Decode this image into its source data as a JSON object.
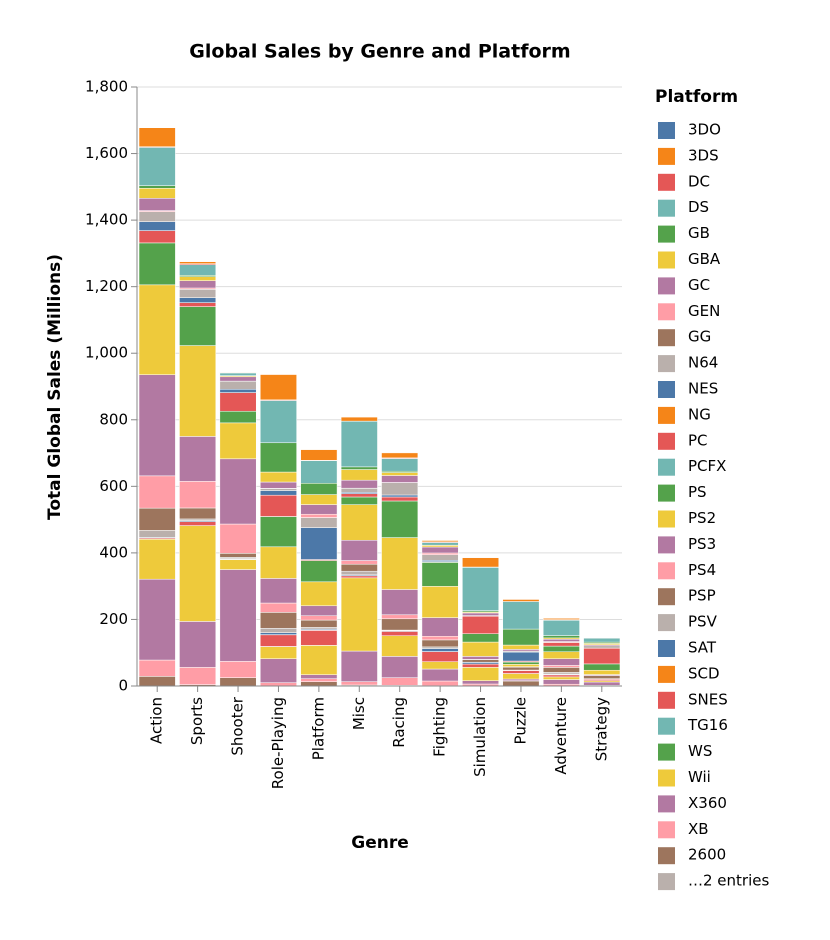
{
  "chart_data": {
    "type": "stacked_bar",
    "title": "Global Sales by Genre and Platform",
    "x_label": "Genre",
    "y_label": "Total Global Sales (Millions)",
    "legend_title": "Platform",
    "legend_more": "…2 entries",
    "categories": [
      "Action",
      "Sports",
      "Shooter",
      "Role-Playing",
      "Platform",
      "Misc",
      "Racing",
      "Fighting",
      "Simulation",
      "Puzzle",
      "Adventure",
      "Strategy"
    ],
    "ylim": [
      0,
      1800
    ],
    "yticks": [
      0,
      200,
      400,
      600,
      800,
      {
        "value": 1000,
        "label": "1,000"
      },
      {
        "value": 1200,
        "label": "1,200"
      },
      {
        "value": 1400,
        "label": "1,400"
      },
      {
        "value": 1600,
        "label": "1,600"
      },
      {
        "value": 1800,
        "label": "1,800"
      }
    ],
    "grid": true,
    "series": [
      {
        "name": "3DO",
        "color": "#4c78a8",
        "values": [
          0.1,
          0,
          0,
          0,
          0,
          0,
          0,
          0,
          0,
          0,
          0.1,
          0
        ]
      },
      {
        "name": "3DS",
        "color": "#f58518",
        "values": [
          57,
          6,
          1,
          76,
          32,
          12,
          15,
          4,
          28,
          6,
          4,
          1
        ]
      },
      {
        "name": "DC",
        "color": "#e45756",
        "values": [
          2,
          3,
          1,
          2,
          1,
          0.5,
          2,
          2,
          1,
          0,
          2,
          0.5
        ]
      },
      {
        "name": "DS",
        "color": "#72b7b2",
        "values": [
          115,
          32,
          8,
          127,
          68,
          137,
          38,
          8,
          130,
          83,
          46,
          12
        ]
      },
      {
        "name": "GB",
        "color": "#54a24b",
        "values": [
          8,
          4,
          0.5,
          88,
          34,
          8,
          4,
          0.5,
          4,
          48,
          7,
          4
        ]
      },
      {
        "name": "GBA",
        "color": "#eeca3b",
        "values": [
          30,
          12,
          3,
          30,
          30,
          32,
          9,
          5,
          3,
          13,
          4,
          4
        ]
      },
      {
        "name": "GC",
        "color": "#b279a2",
        "values": [
          37,
          22,
          13,
          19,
          29,
          24,
          21,
          18,
          8,
          5,
          7,
          3
        ]
      },
      {
        "name": "GEN",
        "color": "#ff9da6",
        "values": [
          3,
          4,
          0.5,
          0.5,
          10,
          0.5,
          0.5,
          5,
          0,
          0,
          0.5,
          0
        ]
      },
      {
        "name": "GG",
        "color": "#9d755d",
        "values": [
          0.1,
          0,
          0,
          0,
          0.1,
          0,
          0,
          0,
          0,
          0,
          0.1,
          0
        ]
      },
      {
        "name": "N64",
        "color": "#bab0ac",
        "values": [
          30,
          25,
          24,
          6,
          30,
          12,
          37,
          17,
          1,
          3,
          1,
          7
        ]
      },
      {
        "name": "NES",
        "color": "#4c78a8",
        "values": [
          27,
          15,
          10,
          14,
          96,
          4,
          6,
          4,
          0.5,
          27,
          1,
          0.5
        ]
      },
      {
        "name": "NG",
        "color": "#f58518",
        "values": [
          0,
          0,
          0,
          0,
          0,
          0,
          0,
          1.2,
          0,
          0,
          0,
          0
        ]
      },
      {
        "name": "PC",
        "color": "#e45756",
        "values": [
          37,
          12,
          56,
          64,
          3,
          10,
          12,
          1,
          53,
          3,
          11,
          47
        ]
      },
      {
        "name": "PCFX",
        "color": "#72b7b2",
        "values": [
          0,
          0,
          0,
          0.1,
          0,
          0,
          0,
          0,
          0,
          0,
          0,
          0
        ]
      },
      {
        "name": "PS",
        "color": "#54a24b",
        "values": [
          126,
          117,
          35,
          91,
          64,
          23,
          110,
          72,
          25,
          7,
          17,
          19
        ]
      },
      {
        "name": "PS2",
        "color": "#eeca3b",
        "values": [
          270,
          273,
          108,
          95,
          72,
          107,
          156,
          94,
          43,
          7,
          21,
          13
        ]
      },
      {
        "name": "PS3",
        "color": "#b279a2",
        "values": [
          304,
          135,
          196,
          74,
          30,
          61,
          76,
          56,
          9,
          1,
          20,
          3
        ]
      },
      {
        "name": "PS4",
        "color": "#ff9da6",
        "values": [
          97,
          80,
          88,
          28,
          13,
          11,
          12,
          11,
          0.5,
          0.1,
          6,
          0.4
        ]
      },
      {
        "name": "PSP",
        "color": "#9d755d",
        "values": [
          67,
          33,
          12,
          48,
          22,
          21,
          34,
          21,
          8,
          9,
          15,
          9
        ]
      },
      {
        "name": "PSV",
        "color": "#bab0ac",
        "values": [
          21,
          5,
          4,
          13,
          5,
          11,
          2,
          5,
          0.5,
          1,
          5,
          1
        ]
      },
      {
        "name": "SAT",
        "color": "#4c78a8",
        "values": [
          2,
          3,
          2,
          6,
          3,
          3,
          2,
          9,
          5,
          0.4,
          2,
          1
        ]
      },
      {
        "name": "SCD",
        "color": "#f58518",
        "values": [
          0.5,
          0,
          0,
          0.5,
          1,
          0,
          0,
          0.5,
          0,
          0,
          0.5,
          0
        ]
      },
      {
        "name": "SNES",
        "color": "#e45756",
        "values": [
          3,
          12,
          0.5,
          35,
          45,
          6,
          13,
          30,
          10,
          9,
          6,
          4
        ]
      },
      {
        "name": "TG16",
        "color": "#72b7b2",
        "values": [
          0,
          0,
          0.2,
          0,
          0.1,
          0,
          0,
          0,
          0,
          0,
          0,
          0
        ]
      },
      {
        "name": "WS",
        "color": "#54a24b",
        "values": [
          0,
          0,
          0,
          0.8,
          0,
          0,
          0,
          0,
          0,
          0.5,
          0,
          0
        ]
      },
      {
        "name": "Wii",
        "color": "#eeca3b",
        "values": [
          120,
          288,
          30,
          36,
          88,
          220,
          62,
          22,
          40,
          16,
          8,
          4
        ]
      },
      {
        "name": "X360",
        "color": "#b279a2",
        "values": [
          243,
          138,
          276,
          72,
          12,
          92,
          64,
          36,
          10,
          5,
          14,
          10
        ]
      },
      {
        "name": "XB",
        "color": "#ff9da6",
        "values": [
          49,
          52,
          49,
          10,
          9,
          10,
          23,
          14,
          6,
          1,
          5,
          2
        ]
      },
      {
        "name": "2600",
        "color": "#9d755d",
        "values": [
          29,
          4,
          25,
          0,
          13,
          3,
          2,
          1,
          0,
          15,
          0.4,
          0
        ]
      }
    ]
  }
}
